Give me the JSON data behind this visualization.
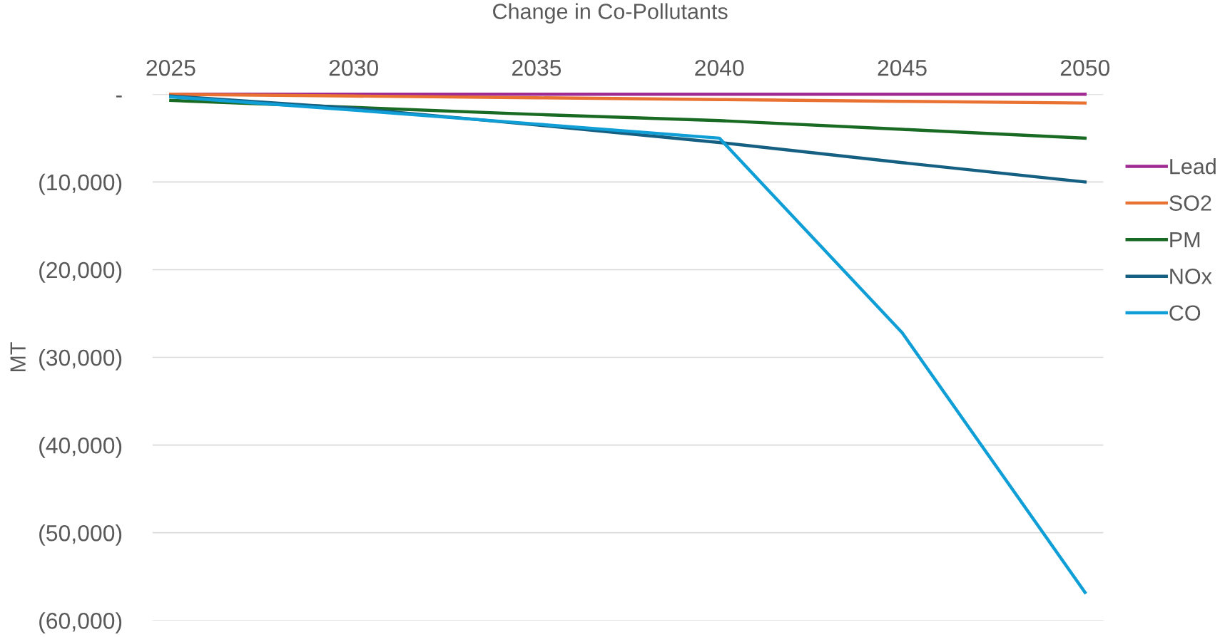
{
  "chart_data": {
    "type": "line",
    "title": "Change in Co-Pollutants",
    "ylabel": "MT",
    "x": [
      2025,
      2030,
      2035,
      2040,
      2045,
      2050
    ],
    "series": [
      {
        "name": "Lead",
        "color": "#a02b93",
        "values": [
          0,
          0,
          0,
          0,
          0,
          0
        ]
      },
      {
        "name": "SO2",
        "color": "#e97132",
        "values": [
          0,
          -200,
          -400,
          -600,
          -800,
          -1000
        ]
      },
      {
        "name": "PM",
        "color": "#196b24",
        "values": [
          -700,
          -1500,
          -2300,
          -3000,
          -4000,
          -5000
        ]
      },
      {
        "name": "NOx",
        "color": "#156082",
        "values": [
          -200,
          -1600,
          -3500,
          -5500,
          -7800,
          -10000
        ]
      },
      {
        "name": "CO",
        "color": "#0f9ed5",
        "values": [
          -300,
          -1800,
          -3400,
          -5000,
          -27200,
          -56800
        ]
      }
    ],
    "xlim": [
      2024.5,
      2050.5
    ],
    "xticks": [
      2025,
      2030,
      2035,
      2040,
      2045,
      2050
    ],
    "ylim": [
      -60000,
      0
    ],
    "yticks": [
      {
        "value": 0,
        "label": "-"
      },
      {
        "value": -10000,
        "label": "(10,000)"
      },
      {
        "value": -20000,
        "label": "(20,000)"
      },
      {
        "value": -30000,
        "label": "(30,000)"
      },
      {
        "value": -40000,
        "label": "(40,000)"
      },
      {
        "value": -50000,
        "label": "(50,000)"
      },
      {
        "value": -60000,
        "label": "(60,000)"
      }
    ],
    "grid": "y",
    "legend": "right",
    "line_style": "solid",
    "marker": "none"
  }
}
